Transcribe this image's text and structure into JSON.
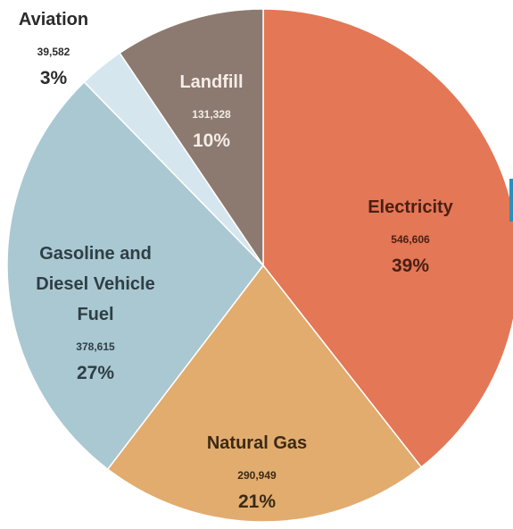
{
  "chart_data": {
    "type": "pie",
    "start_angle_deg": 0,
    "direction": "clockwise",
    "slices": [
      {
        "label": "Electricity",
        "value": 546606,
        "value_label": "546,606",
        "percent_label": "39%",
        "color": "#e47756",
        "text_color": "#4a1f14"
      },
      {
        "label": "Natural Gas",
        "value": 290949,
        "value_label": "290,949",
        "percent_label": "21%",
        "color": "#e2ac6f",
        "text_color": "#3b2a14"
      },
      {
        "label_lines": [
          "Gasoline and",
          "Diesel Vehicle",
          "Fuel"
        ],
        "value": 378615,
        "value_label": "378,615",
        "percent_label": "27%",
        "color": "#a9c8d2",
        "text_color": "#2f3e44"
      },
      {
        "label": "Aviation",
        "value": 39582,
        "value_label": "39,582",
        "percent_label": "3%",
        "color": "#d6e6ee",
        "text_color": "#2b2b2b"
      },
      {
        "label": "Landfill",
        "value": 131328,
        "value_label": "131,328",
        "percent_label": "10%",
        "color": "#8c7a70",
        "text_color": "#f4ede8"
      }
    ]
  }
}
